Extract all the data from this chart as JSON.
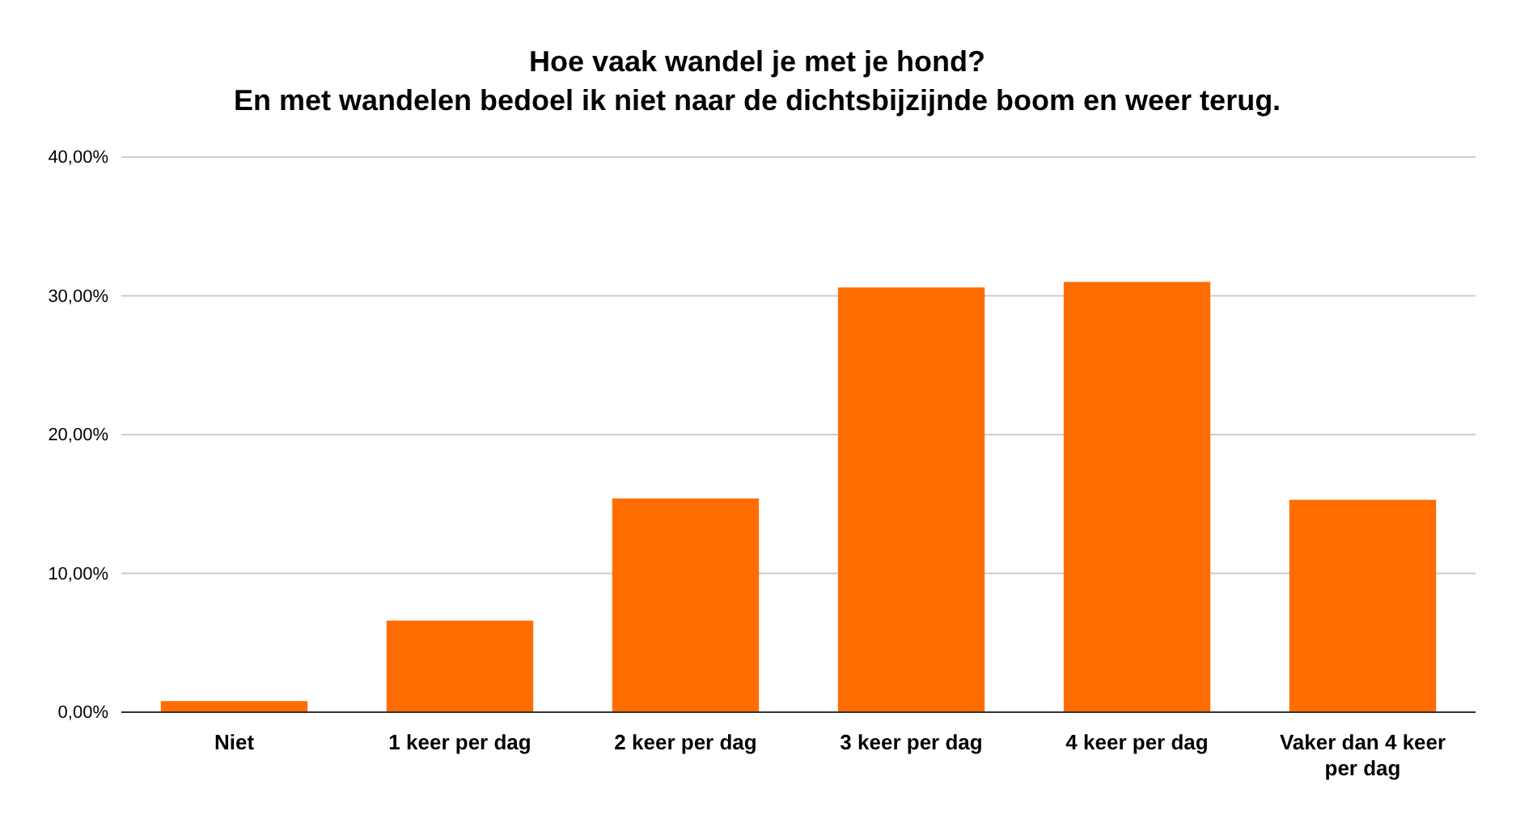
{
  "chart_data": {
    "type": "bar",
    "title": "Hoe vaak wandel je met je hond?\nEn met wandelen bedoel ik niet naar de dichtsbijzijnde boom en weer terug.",
    "categories": [
      "Niet",
      "1 keer per dag",
      "2 keer per dag",
      "3 keer per dag",
      "4 keer per dag",
      "Vaker dan 4 keer per dag"
    ],
    "values": [
      0.8,
      6.6,
      15.4,
      30.6,
      31.0,
      15.3
    ],
    "color": "#ff6d01",
    "ylim": [
      0,
      40
    ],
    "yticks": [
      {
        "value": 0,
        "label": "0,00%"
      },
      {
        "value": 10,
        "label": "10,00%"
      },
      {
        "value": 20,
        "label": "20,00%"
      },
      {
        "value": 30,
        "label": "30,00%"
      },
      {
        "value": 40,
        "label": "40,00%"
      }
    ],
    "grid": "y"
  }
}
